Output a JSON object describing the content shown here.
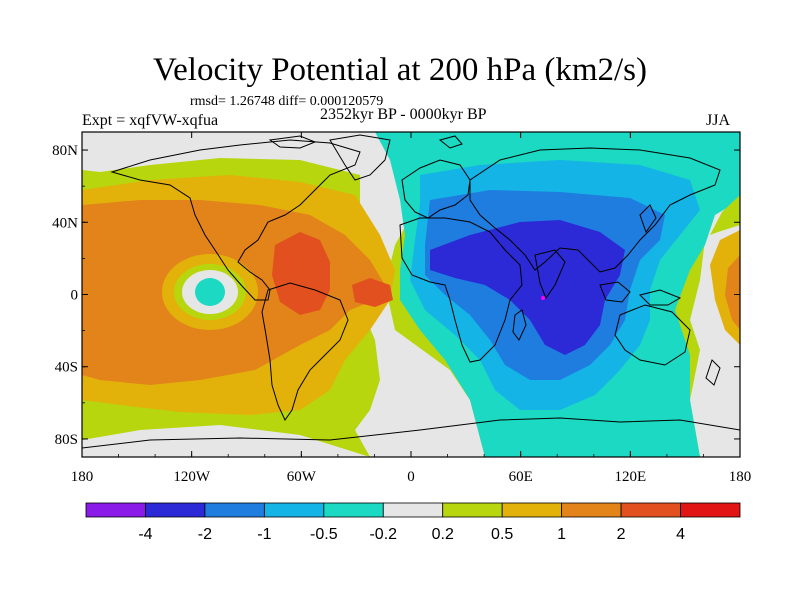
{
  "header": {
    "title": "Velocity Potential at 200 hPa (km2/s)",
    "stats": "rmsd= 1.26748 diff= 0.000120579",
    "experiment": "Expt = xqfVW-xqfua",
    "period": "2352kyr BP - 0000kyr BP",
    "season": "JJA"
  },
  "axes": {
    "x_ticks": [
      "180",
      "120W",
      "60W",
      "0",
      "60E",
      "120E",
      "180"
    ],
    "x_values": [
      -180,
      -120,
      -60,
      0,
      60,
      120,
      180
    ],
    "y_ticks": [
      "80N",
      "40N",
      "0",
      "40S",
      "80S"
    ],
    "y_values": [
      80,
      40,
      0,
      -40,
      -80
    ]
  },
  "colorbar": {
    "labels": [
      "-4",
      "-2",
      "-1",
      "-0.5",
      "-0.2",
      "0.2",
      "0.5",
      "1",
      "2",
      "4"
    ],
    "colors": [
      "#8a1ae8",
      "#2b2ad6",
      "#1f7de0",
      "#14b4e6",
      "#1bd9c2",
      "#e6e6e6",
      "#b7d60d",
      "#e3b20a",
      "#e2841a",
      "#e1501e",
      "#e21515"
    ]
  },
  "palette": {
    "strong_negative": "#2b2ad6",
    "negative": "#1f7de0",
    "weak_negative": "#14b4e6",
    "slight_negative": "#1bd9c2",
    "neutral": "#e6e6e6",
    "slight_positive": "#b7d60d",
    "positive": "#e3b20a",
    "strong_positive": "#e2841a",
    "stronger_positive": "#e1501e",
    "max_positive": "#e21515",
    "marker": "#ff00ff"
  }
}
